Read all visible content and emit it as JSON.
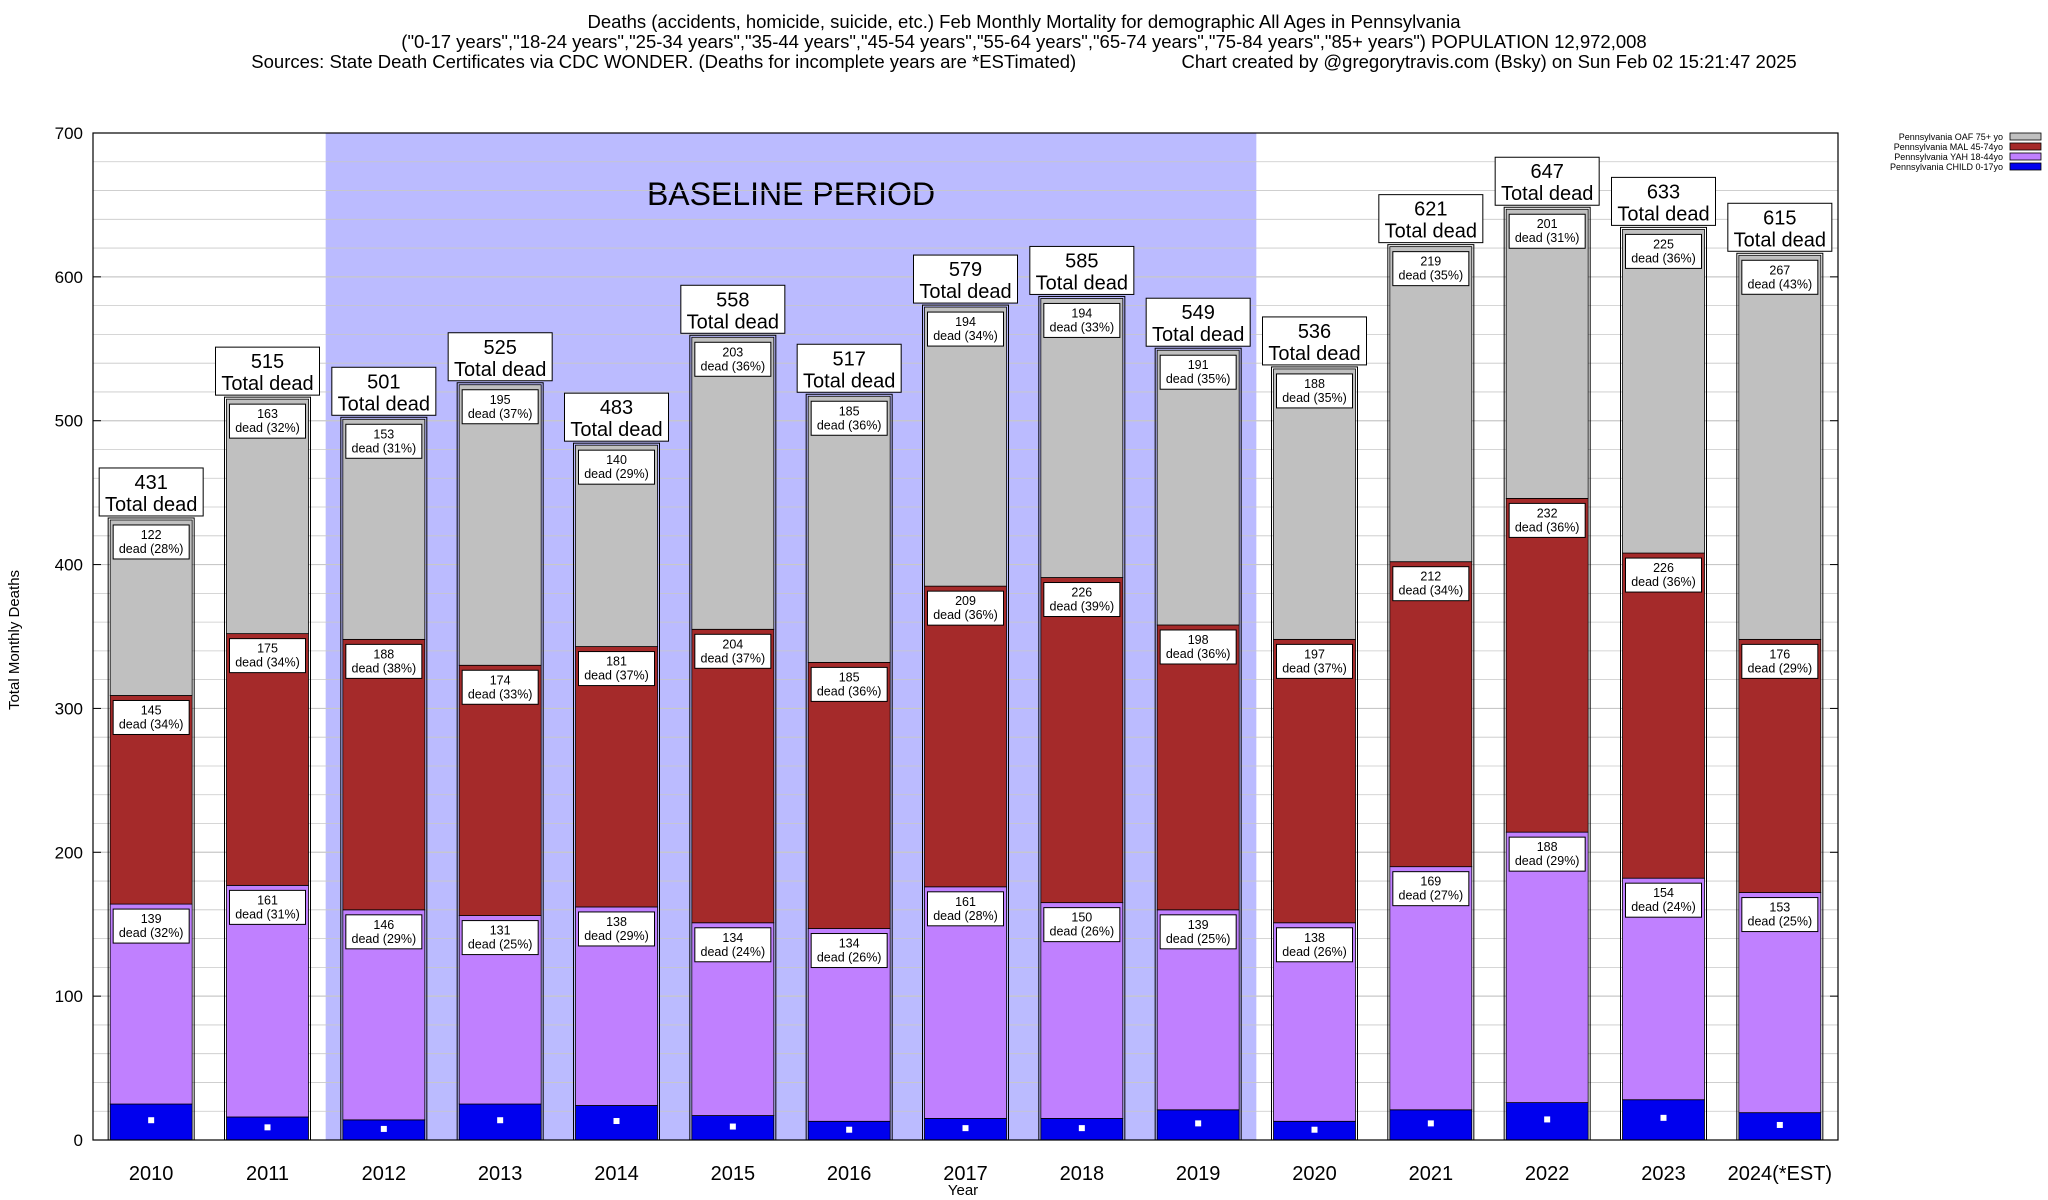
{
  "title": {
    "line1": "Deaths (accidents, homicide, suicide, etc.) Feb Monthly Mortality for demographic All Ages in Pennsylvania",
    "line2": "(\"0-17 years\",\"18-24 years\",\"25-34 years\",\"35-44 years\",\"45-54 years\",\"55-64 years\",\"65-74 years\",\"75-84 years\",\"85+ years\") POPULATION 12,972,008",
    "line3_left": "Sources: State Death Certificates via CDC WONDER. (Deaths for incomplete years are *ESTimated)",
    "line3_right": "Chart created by @gregorytravis.com (Bsky) on Sun Feb 02 15:21:47 2025"
  },
  "colors": {
    "child": "#0000ee",
    "yah": "#c080ff",
    "mal": "#a52a2a",
    "oaf": "#c0c0c0",
    "baseline": "#bbbbff",
    "grid": "#c8c8c8"
  },
  "chart_data": {
    "type": "bar",
    "stacked": true,
    "xlabel": "Year",
    "ylabel": "Total Monthly Deaths",
    "ylim": [
      0,
      700
    ],
    "yticks": [
      0,
      100,
      200,
      300,
      400,
      500,
      600,
      700
    ],
    "grid": true,
    "legend_position": "top-right",
    "categories": [
      "2010",
      "2011",
      "2012",
      "2013",
      "2014",
      "2015",
      "2016",
      "2017",
      "2018",
      "2019",
      "2020",
      "2021",
      "2022",
      "2023",
      "2024(*EST)"
    ],
    "series": [
      {
        "name": "Pennsylvania CHILD 0-17yo",
        "key": "child",
        "values": [
          25,
          16,
          14,
          25,
          24,
          17,
          13,
          15,
          15,
          21,
          13,
          21,
          26,
          28,
          19
        ]
      },
      {
        "name": "Pennsylvania YAH 18-44yo",
        "key": "yah",
        "values": [
          139,
          161,
          146,
          131,
          138,
          134,
          134,
          161,
          150,
          139,
          138,
          169,
          188,
          154,
          153
        ]
      },
      {
        "name": "Pennsylvania MAL 45-74yo",
        "key": "mal",
        "values": [
          145,
          175,
          188,
          174,
          181,
          204,
          185,
          209,
          226,
          198,
          197,
          212,
          232,
          226,
          176
        ]
      },
      {
        "name": "Pennsylvania OAF 75+ yo",
        "key": "oaf",
        "values": [
          122,
          163,
          153,
          195,
          140,
          203,
          185,
          194,
          194,
          191,
          188,
          219,
          201,
          225,
          267
        ]
      }
    ],
    "segment_labels": {
      "yah": [
        "139\ndead (32%)",
        "161\ndead (31%)",
        "146\ndead (29%)",
        "131\ndead (25%)",
        "138\ndead (29%)",
        "134\ndead (24%)",
        "134\ndead (26%)",
        "161\ndead (28%)",
        "150\ndead (26%)",
        "139\ndead (25%)",
        "138\ndead (26%)",
        "169\ndead (27%)",
        "188\ndead (29%)",
        "154\ndead (24%)",
        "153\ndead (25%)"
      ],
      "mal": [
        "145\ndead (34%)",
        "175\ndead (34%)",
        "188\ndead (38%)",
        "174\ndead (33%)",
        "181\ndead (37%)",
        "204\ndead (37%)",
        "185\ndead (36%)",
        "209\ndead (36%)",
        "226\ndead (39%)",
        "198\ndead (36%)",
        "197\ndead (37%)",
        "212\ndead (34%)",
        "232\ndead (36%)",
        "226\ndead (36%)",
        "176\ndead (29%)"
      ],
      "oaf": [
        "122\ndead (28%)",
        "163\ndead (32%)",
        "153\ndead (31%)",
        "195\ndead (37%)",
        "140\ndead (29%)",
        "203\ndead (36%)",
        "185\ndead (36%)",
        "194\ndead (34%)",
        "194\ndead (33%)",
        "191\ndead (35%)",
        "188\ndead (35%)",
        "219\ndead (35%)",
        "201\ndead (31%)",
        "225\ndead (36%)",
        "267\ndead (43%)"
      ]
    },
    "totals": [
      431,
      515,
      501,
      525,
      483,
      558,
      517,
      579,
      585,
      549,
      536,
      621,
      647,
      633,
      615
    ],
    "total_suffix": "Total dead",
    "baseline": {
      "label": "BASELINE PERIOD",
      "from": "2012",
      "to": "2019"
    }
  }
}
